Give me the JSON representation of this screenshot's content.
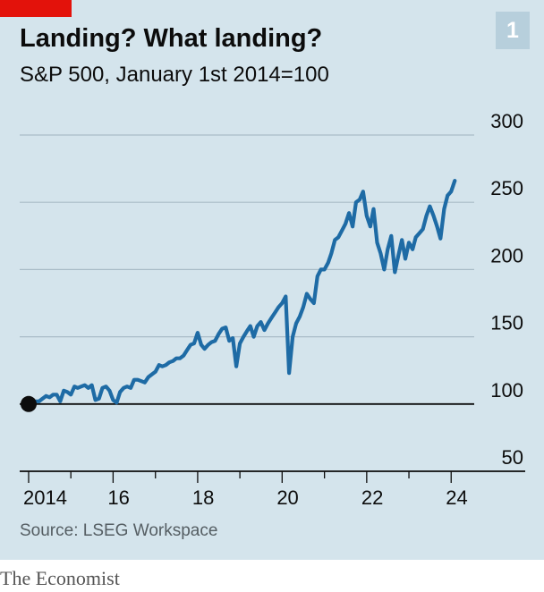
{
  "header": {
    "title": "Landing? What landing?",
    "subtitle": "S&P 500, January 1st 2014=100",
    "chart_number": "1"
  },
  "footer": {
    "source": "Source: LSEG Workspace",
    "brand": "The Economist"
  },
  "colors": {
    "background": "#d4e4ec",
    "line": "#1e6ba5",
    "accent": "#e3120b",
    "gridline": "#a9bcc7",
    "baseline": "#0c0c0c"
  },
  "chart_data": {
    "type": "line",
    "title": "Landing? What landing?",
    "subtitle": "S&P 500, January 1st 2014=100",
    "xlabel": "",
    "ylabel": "",
    "x_tick_labels": [
      "2014",
      "16",
      "18",
      "20",
      "22",
      "24"
    ],
    "x_tick_years": [
      2014,
      2016,
      2018,
      2020,
      2022,
      2024
    ],
    "y_tick_labels": [
      "300",
      "250",
      "200",
      "150",
      "100",
      "50"
    ],
    "y_ticks": [
      300,
      250,
      200,
      150,
      100,
      50
    ],
    "ylim": [
      50,
      300
    ],
    "xlim": [
      "2014-01-01",
      "2024-03-01"
    ],
    "grid": true,
    "highlight_baseline": 100,
    "start_marker": {
      "x": "2014-01-01",
      "y": 100
    },
    "series": [
      {
        "points": [
          [
            "2014-01-01",
            100
          ],
          [
            "2014-02-01",
            97
          ],
          [
            "2014-03-01",
            102
          ],
          [
            "2014-04-01",
            102
          ],
          [
            "2014-05-01",
            104
          ],
          [
            "2014-06-01",
            106
          ],
          [
            "2014-07-01",
            105
          ],
          [
            "2014-08-01",
            107
          ],
          [
            "2014-09-01",
            107
          ],
          [
            "2014-10-01",
            102
          ],
          [
            "2014-11-01",
            110
          ],
          [
            "2014-12-01",
            109
          ],
          [
            "2015-01-01",
            107
          ],
          [
            "2015-02-01",
            113
          ],
          [
            "2015-03-01",
            112
          ],
          [
            "2015-04-01",
            113
          ],
          [
            "2015-05-01",
            114
          ],
          [
            "2015-06-01",
            112
          ],
          [
            "2015-07-01",
            114
          ],
          [
            "2015-08-01",
            103
          ],
          [
            "2015-09-01",
            104
          ],
          [
            "2015-10-01",
            112
          ],
          [
            "2015-11-01",
            113
          ],
          [
            "2015-12-01",
            110
          ],
          [
            "2016-01-01",
            103
          ],
          [
            "2016-02-01",
            101
          ],
          [
            "2016-03-01",
            109
          ],
          [
            "2016-04-01",
            112
          ],
          [
            "2016-05-01",
            113
          ],
          [
            "2016-06-01",
            112
          ],
          [
            "2016-07-01",
            118
          ],
          [
            "2016-08-01",
            118
          ],
          [
            "2016-09-01",
            117
          ],
          [
            "2016-10-01",
            116
          ],
          [
            "2016-11-01",
            120
          ],
          [
            "2016-12-01",
            122
          ],
          [
            "2017-01-01",
            124
          ],
          [
            "2017-02-01",
            129
          ],
          [
            "2017-03-01",
            128
          ],
          [
            "2017-04-01",
            129
          ],
          [
            "2017-05-01",
            131
          ],
          [
            "2017-06-01",
            132
          ],
          [
            "2017-07-01",
            134
          ],
          [
            "2017-08-01",
            134
          ],
          [
            "2017-09-01",
            136
          ],
          [
            "2017-10-01",
            140
          ],
          [
            "2017-11-01",
            144
          ],
          [
            "2017-12-01",
            145
          ],
          [
            "2018-01-01",
            153
          ],
          [
            "2018-02-01",
            144
          ],
          [
            "2018-03-01",
            141
          ],
          [
            "2018-04-01",
            144
          ],
          [
            "2018-05-01",
            146
          ],
          [
            "2018-06-01",
            147
          ],
          [
            "2018-07-01",
            152
          ],
          [
            "2018-08-01",
            156
          ],
          [
            "2018-09-01",
            157
          ],
          [
            "2018-10-01",
            147
          ],
          [
            "2018-11-01",
            149
          ],
          [
            "2018-12-01",
            128
          ],
          [
            "2019-01-01",
            145
          ],
          [
            "2019-02-01",
            150
          ],
          [
            "2019-03-01",
            154
          ],
          [
            "2019-04-01",
            158
          ],
          [
            "2019-05-01",
            150
          ],
          [
            "2019-06-01",
            158
          ],
          [
            "2019-07-01",
            161
          ],
          [
            "2019-08-01",
            155
          ],
          [
            "2019-09-01",
            160
          ],
          [
            "2019-10-01",
            164
          ],
          [
            "2019-11-01",
            168
          ],
          [
            "2019-12-01",
            172
          ],
          [
            "2020-01-01",
            175
          ],
          [
            "2020-02-01",
            180
          ],
          [
            "2020-03-01",
            123
          ],
          [
            "2020-04-01",
            150
          ],
          [
            "2020-05-01",
            160
          ],
          [
            "2020-06-01",
            165
          ],
          [
            "2020-07-01",
            172
          ],
          [
            "2020-08-01",
            182
          ],
          [
            "2020-09-01",
            178
          ],
          [
            "2020-10-01",
            175
          ],
          [
            "2020-11-01",
            195
          ],
          [
            "2020-12-01",
            200
          ],
          [
            "2021-01-01",
            200
          ],
          [
            "2021-02-01",
            205
          ],
          [
            "2021-03-01",
            212
          ],
          [
            "2021-04-01",
            222
          ],
          [
            "2021-05-01",
            224
          ],
          [
            "2021-06-01",
            229
          ],
          [
            "2021-07-01",
            234
          ],
          [
            "2021-08-01",
            242
          ],
          [
            "2021-09-01",
            232
          ],
          [
            "2021-10-01",
            250
          ],
          [
            "2021-11-01",
            252
          ],
          [
            "2021-12-01",
            258
          ],
          [
            "2022-01-01",
            240
          ],
          [
            "2022-02-01",
            232
          ],
          [
            "2022-03-01",
            245
          ],
          [
            "2022-04-01",
            220
          ],
          [
            "2022-05-01",
            212
          ],
          [
            "2022-06-01",
            200
          ],
          [
            "2022-07-01",
            215
          ],
          [
            "2022-08-01",
            225
          ],
          [
            "2022-09-01",
            198
          ],
          [
            "2022-10-01",
            210
          ],
          [
            "2022-11-01",
            222
          ],
          [
            "2022-12-01",
            208
          ],
          [
            "2023-01-01",
            220
          ],
          [
            "2023-02-01",
            215
          ],
          [
            "2023-03-01",
            224
          ],
          [
            "2023-04-01",
            227
          ],
          [
            "2023-05-01",
            230
          ],
          [
            "2023-06-01",
            240
          ],
          [
            "2023-07-01",
            247
          ],
          [
            "2023-08-01",
            240
          ],
          [
            "2023-09-01",
            232
          ],
          [
            "2023-10-01",
            223
          ],
          [
            "2023-11-01",
            245
          ],
          [
            "2023-12-01",
            255
          ],
          [
            "2024-01-01",
            258
          ],
          [
            "2024-02-01",
            266
          ]
        ]
      }
    ]
  }
}
